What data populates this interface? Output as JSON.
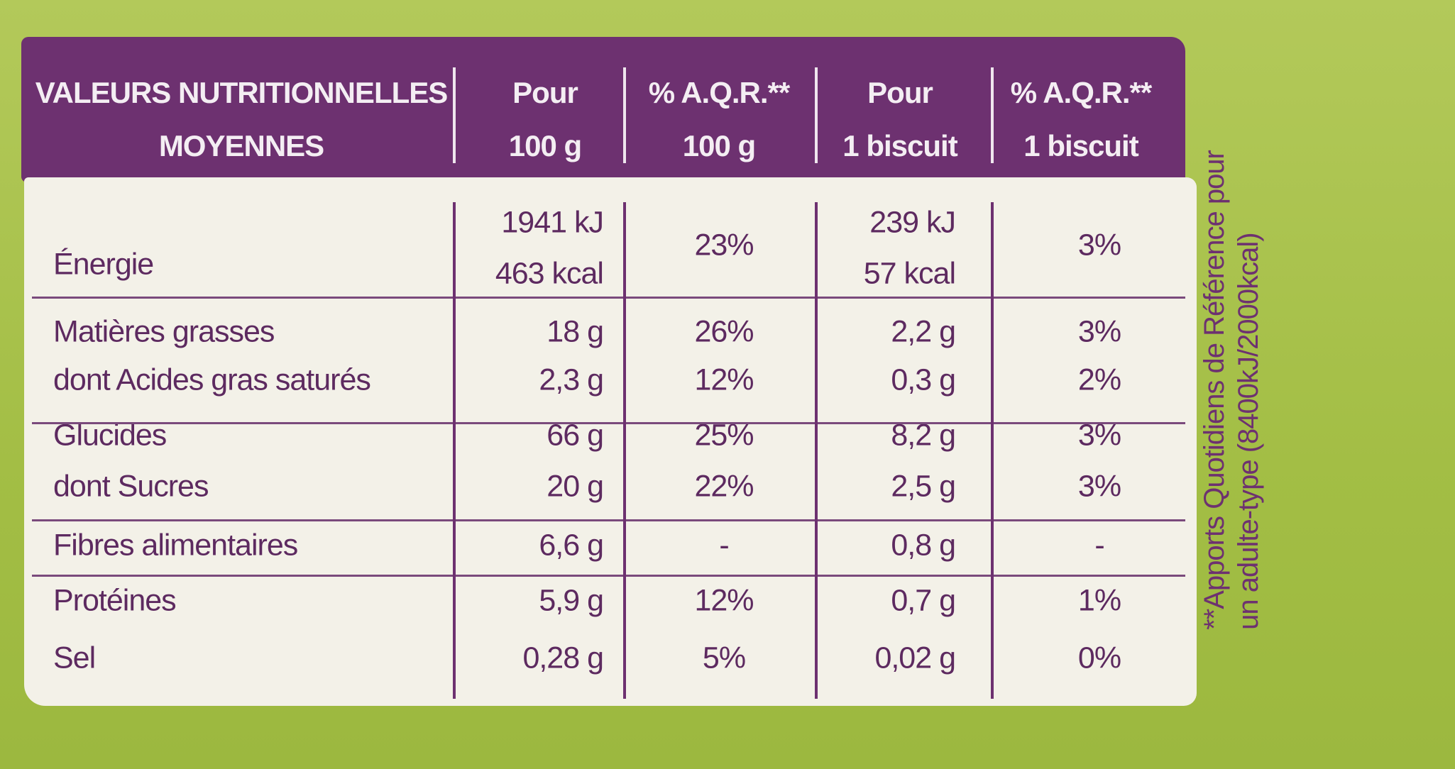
{
  "table": {
    "header": [
      [
        "VALEURS NUTRITIONNELLES",
        "MOYENNES"
      ],
      [
        "Pour",
        "100 g"
      ],
      [
        "% A.Q.R.**",
        "100 g"
      ],
      [
        "Pour",
        "1 biscuit"
      ],
      [
        "% A.Q.R.**",
        "1 biscuit"
      ]
    ],
    "groups": [
      [
        [
          "Énergie",
          [
            "1941 kJ",
            "463 kcal"
          ],
          "23%",
          [
            "239 kJ",
            "57 kcal"
          ],
          "3%"
        ]
      ],
      [
        [
          "Matières grasses",
          "18 g",
          "26%",
          "2,2 g",
          "3%"
        ],
        [
          "dont Acides gras saturés",
          "2,3 g",
          "12%",
          "0,3 g",
          "2%"
        ]
      ],
      [
        [
          "Glucides",
          "66 g",
          "25%",
          "8,2 g",
          "3%"
        ],
        [
          "dont Sucres",
          "20 g",
          "22%",
          "2,5 g",
          "3%"
        ]
      ],
      [
        [
          "Fibres alimentaires",
          "6,6 g",
          "-",
          "0,8 g",
          "-"
        ]
      ],
      [
        [
          "Protéines",
          "5,9 g",
          "12%",
          "0,7 g",
          "1%"
        ],
        [
          "Sel",
          "0,28 g",
          "5%",
          "0,02 g",
          "0%"
        ]
      ]
    ]
  },
  "footnote": [
    "**Apports Quotidiens de Référence pour",
    "un adulte-type (8400kJ/2000kcal)"
  ]
}
